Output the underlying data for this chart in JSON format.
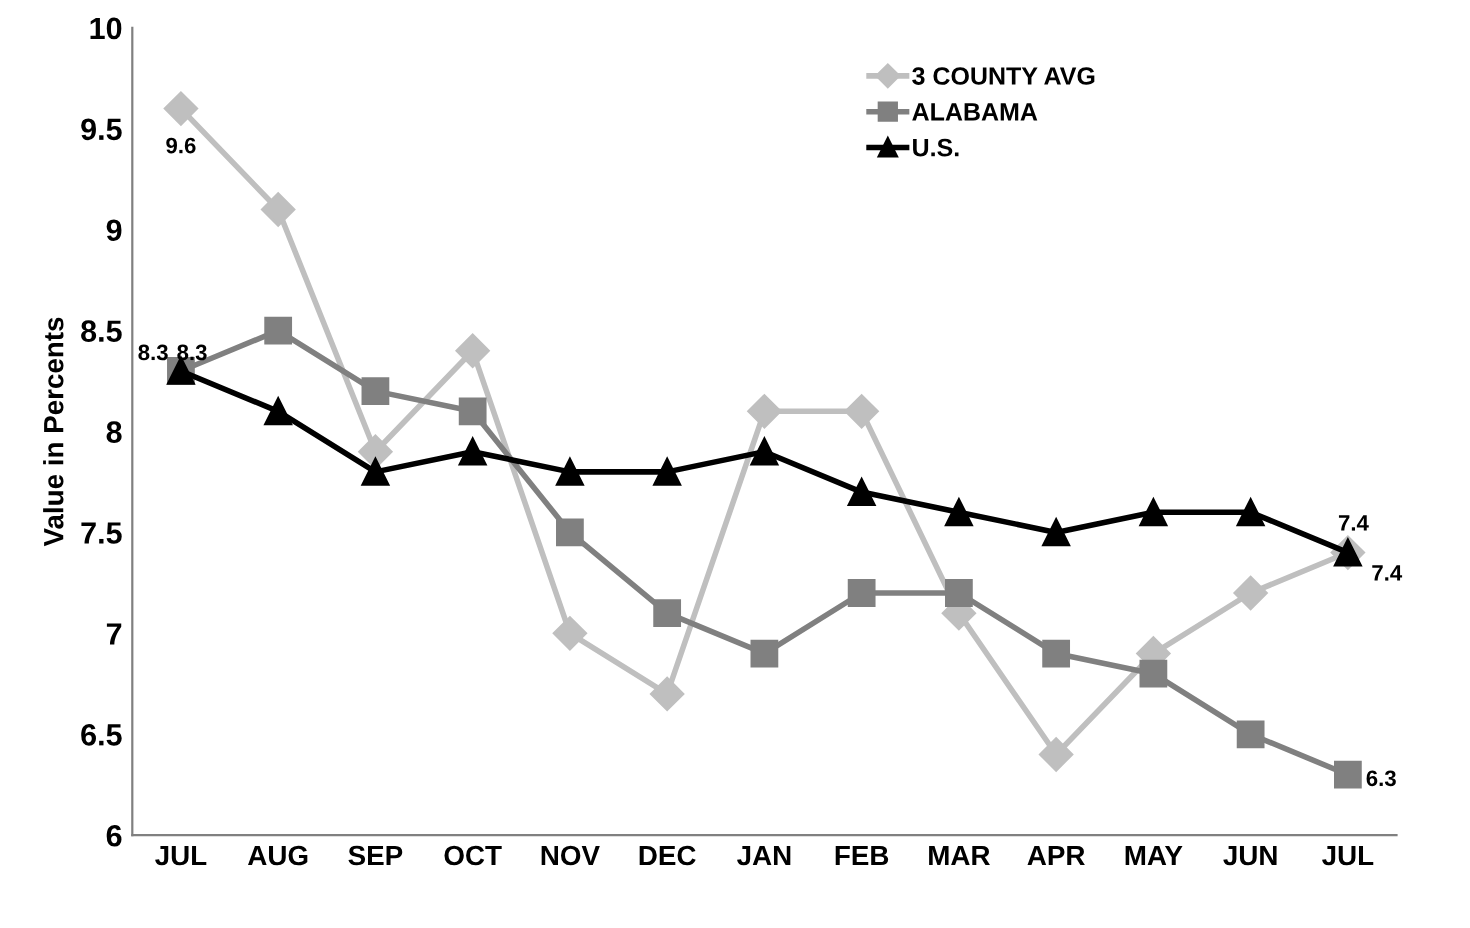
{
  "chart_data": {
    "type": "line",
    "ylabel": "Value in Percents",
    "categories": [
      "JUL",
      "AUG",
      "SEP",
      "OCT",
      "NOV",
      "DEC",
      "JAN",
      "FEB",
      "MAR",
      "APR",
      "MAY",
      "JUN",
      "JUL"
    ],
    "series": [
      {
        "name": "3 COUNTY AVG",
        "color": "#bfbfbf",
        "marker": "diamond",
        "values": [
          9.6,
          9.1,
          7.9,
          8.4,
          7.0,
          6.7,
          8.1,
          8.1,
          7.1,
          6.4,
          6.9,
          7.2,
          7.4
        ],
        "value_labels": [
          "9.6",
          null,
          null,
          null,
          null,
          null,
          null,
          null,
          null,
          null,
          null,
          null,
          "7.4"
        ]
      },
      {
        "name": "ALABAMA",
        "color": "#808080",
        "marker": "square",
        "values": [
          8.3,
          8.5,
          8.2,
          8.1,
          7.5,
          7.1,
          6.9,
          7.2,
          7.2,
          6.9,
          6.8,
          6.5,
          6.3
        ],
        "value_labels": [
          "8.3",
          null,
          null,
          null,
          null,
          null,
          null,
          null,
          null,
          null,
          null,
          null,
          "6.3"
        ]
      },
      {
        "name": "U.S.",
        "color": "#000000",
        "marker": "triangle",
        "values": [
          8.3,
          8.1,
          7.8,
          7.9,
          7.8,
          7.8,
          7.9,
          7.7,
          7.6,
          7.5,
          7.6,
          7.6,
          7.4
        ],
        "value_labels": [
          "8.3",
          null,
          null,
          null,
          null,
          null,
          null,
          null,
          null,
          null,
          null,
          null,
          "7.4"
        ]
      }
    ],
    "ylim": [
      6,
      10
    ],
    "yticks": [
      6,
      6.5,
      7,
      7.5,
      8,
      8.5,
      9,
      9.5,
      10
    ],
    "grid": false,
    "legend": "top right"
  }
}
